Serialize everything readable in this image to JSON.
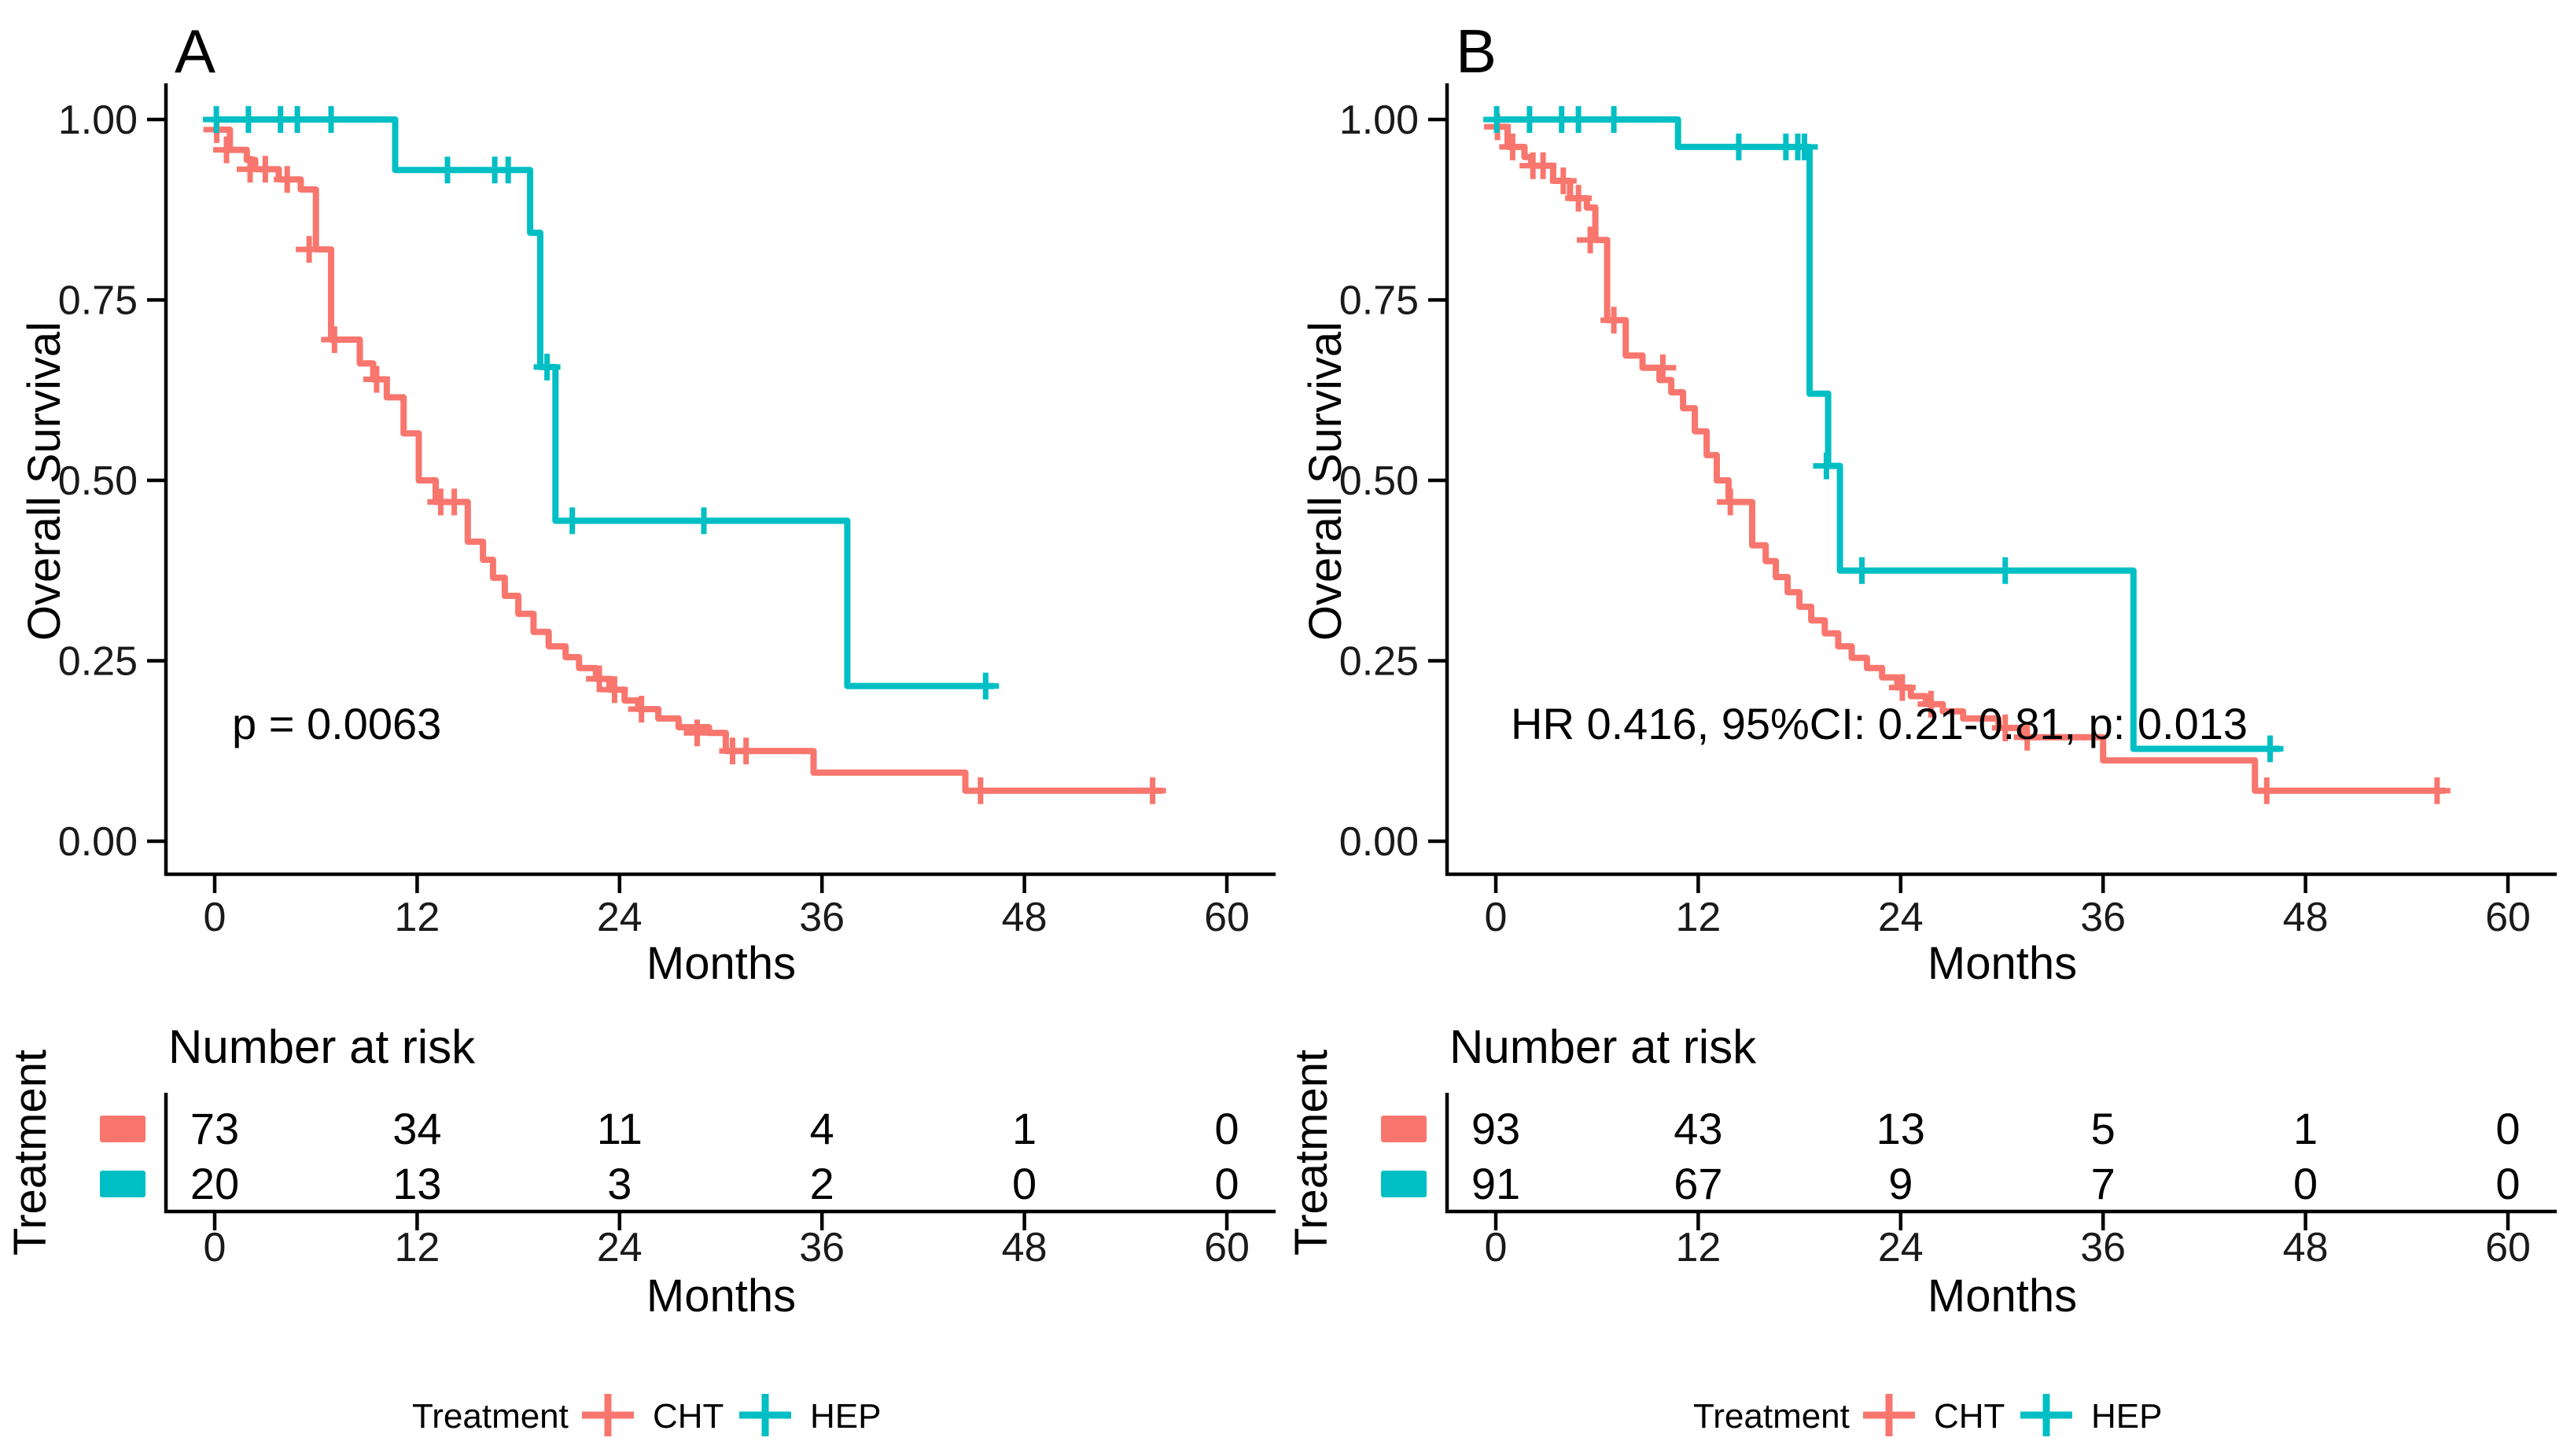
{
  "figure": {
    "background": "#ffffff",
    "group_colors": {
      "CHT": "#F8766D",
      "HEP": "#00BFC4"
    }
  },
  "chart_data": [
    {
      "type": "line",
      "variant": "kaplan_meier_step",
      "title": "A",
      "xlabel": "Months",
      "ylabel": "Overall Survival",
      "xlim": [
        0,
        60
      ],
      "ylim": [
        0,
        1
      ],
      "xticks": [
        0,
        12,
        24,
        36,
        48,
        60
      ],
      "yticks": [
        [
          "1.00",
          1.0
        ],
        [
          "0.75",
          0.75
        ],
        [
          "0.50",
          0.5
        ],
        [
          "0.25",
          0.25
        ],
        [
          "0.00",
          0.0
        ]
      ],
      "annotation": "p = 0.0063",
      "legend": {
        "title": "Treatment",
        "position": "bottom"
      },
      "series": [
        {
          "name": "CHT",
          "color": "#F8766D",
          "steps": [
            [
              0,
              0.986
            ],
            [
              0.9,
              0.958
            ],
            [
              1.9,
              0.944
            ],
            [
              2.4,
              0.931
            ],
            [
              3.8,
              0.917
            ],
            [
              5.1,
              0.903
            ],
            [
              6.0,
              0.82
            ],
            [
              6.9,
              0.695
            ],
            [
              8.6,
              0.662
            ],
            [
              9.4,
              0.64
            ],
            [
              10.2,
              0.615
            ],
            [
              11.2,
              0.565
            ],
            [
              12.1,
              0.5
            ],
            [
              13.1,
              0.47
            ],
            [
              15.0,
              0.415
            ],
            [
              15.9,
              0.39
            ],
            [
              16.5,
              0.365
            ],
            [
              17.2,
              0.34
            ],
            [
              18.0,
              0.315
            ],
            [
              18.9,
              0.29
            ],
            [
              19.8,
              0.27
            ],
            [
              20.8,
              0.255
            ],
            [
              21.6,
              0.24
            ],
            [
              22.6,
              0.225
            ],
            [
              23.4,
              0.21
            ],
            [
              24.3,
              0.195
            ],
            [
              25.1,
              0.183
            ],
            [
              26.3,
              0.17
            ],
            [
              27.5,
              0.158
            ],
            [
              29.3,
              0.15
            ],
            [
              30.3,
              0.125
            ],
            [
              35.5,
              0.095
            ],
            [
              44.5,
              0.07
            ]
          ],
          "end_time": 56.2,
          "censors": [
            [
              0.12,
              0.986
            ],
            [
              0.7,
              0.958
            ],
            [
              2.1,
              0.931
            ],
            [
              3.0,
              0.931
            ],
            [
              4.3,
              0.917
            ],
            [
              5.6,
              0.82
            ],
            [
              7.1,
              0.695
            ],
            [
              9.6,
              0.64
            ],
            [
              13.4,
              0.47
            ],
            [
              14.2,
              0.47
            ],
            [
              22.8,
              0.225
            ],
            [
              23.7,
              0.21
            ],
            [
              25.3,
              0.183
            ],
            [
              28.6,
              0.15
            ],
            [
              30.7,
              0.125
            ],
            [
              31.5,
              0.125
            ],
            [
              45.4,
              0.07
            ],
            [
              55.6,
              0.07
            ]
          ]
        },
        {
          "name": "HEP",
          "color": "#00BFC4",
          "steps": [
            [
              0,
              1.0
            ],
            [
              10.7,
              0.93
            ],
            [
              18.7,
              0.843
            ],
            [
              19.3,
              0.657
            ],
            [
              20.2,
              0.444
            ],
            [
              37.5,
              0.215
            ]
          ],
          "end_time": 46.2,
          "censors": [
            [
              0.1,
              1.0
            ],
            [
              2.0,
              1.0
            ],
            [
              3.9,
              1.0
            ],
            [
              4.9,
              1.0
            ],
            [
              6.9,
              1.0
            ],
            [
              13.8,
              0.93
            ],
            [
              16.6,
              0.93
            ],
            [
              17.4,
              0.93
            ],
            [
              19.7,
              0.657
            ],
            [
              21.2,
              0.444
            ],
            [
              29.0,
              0.444
            ],
            [
              45.7,
              0.215
            ]
          ]
        }
      ],
      "risk_table": {
        "title": "Number at risk",
        "row_label": "Treatment",
        "times": [
          0,
          12,
          24,
          36,
          48,
          60
        ],
        "rows": [
          {
            "name": "CHT",
            "color": "#F8766D",
            "counts": [
              73,
              34,
              11,
              4,
              1,
              0
            ]
          },
          {
            "name": "HEP",
            "color": "#00BFC4",
            "counts": [
              20,
              13,
              3,
              2,
              0,
              0
            ]
          }
        ]
      }
    },
    {
      "type": "line",
      "variant": "kaplan_meier_step",
      "title": "B",
      "xlabel": "Months",
      "ylabel": "Overall Survival",
      "xlim": [
        0,
        60
      ],
      "ylim": [
        0,
        1
      ],
      "xticks": [
        0,
        12,
        24,
        36,
        48,
        60
      ],
      "yticks": [
        [
          "1.00",
          1.0
        ],
        [
          "0.75",
          0.75
        ],
        [
          "0.50",
          0.5
        ],
        [
          "0.25",
          0.25
        ],
        [
          "0.00",
          0.0
        ]
      ],
      "annotation": "HR 0.416, 95%CI: 0.21-0.81, p: 0.013",
      "legend": {
        "title": "Treatment",
        "position": "bottom"
      },
      "series": [
        {
          "name": "CHT",
          "color": "#F8766D",
          "steps": [
            [
              0,
              0.99
            ],
            [
              0.7,
              0.962
            ],
            [
              1.7,
              0.948
            ],
            [
              2.1,
              0.936
            ],
            [
              3.4,
              0.915
            ],
            [
              4.4,
              0.891
            ],
            [
              5.4,
              0.878
            ],
            [
              5.9,
              0.833
            ],
            [
              6.6,
              0.722
            ],
            [
              7.7,
              0.673
            ],
            [
              8.7,
              0.656
            ],
            [
              9.7,
              0.639
            ],
            [
              10.4,
              0.622
            ],
            [
              11.1,
              0.6
            ],
            [
              11.8,
              0.568
            ],
            [
              12.5,
              0.535
            ],
            [
              13.1,
              0.5
            ],
            [
              13.8,
              0.47
            ],
            [
              15.2,
              0.41
            ],
            [
              16.0,
              0.388
            ],
            [
              16.6,
              0.366
            ],
            [
              17.3,
              0.345
            ],
            [
              18.0,
              0.325
            ],
            [
              18.7,
              0.306
            ],
            [
              19.5,
              0.288
            ],
            [
              20.3,
              0.27
            ],
            [
              21.1,
              0.254
            ],
            [
              22.0,
              0.24
            ],
            [
              22.9,
              0.227
            ],
            [
              23.8,
              0.213
            ],
            [
              24.6,
              0.201
            ],
            [
              25.5,
              0.19
            ],
            [
              26.5,
              0.18
            ],
            [
              27.7,
              0.17
            ],
            [
              29.8,
              0.157
            ],
            [
              31.2,
              0.144
            ],
            [
              36.0,
              0.112
            ],
            [
              45.0,
              0.07
            ]
          ],
          "end_time": 56.3,
          "censors": [
            [
              0.1,
              0.99
            ],
            [
              1.0,
              0.962
            ],
            [
              2.2,
              0.936
            ],
            [
              2.8,
              0.936
            ],
            [
              4.0,
              0.915
            ],
            [
              4.9,
              0.891
            ],
            [
              5.6,
              0.833
            ],
            [
              7.0,
              0.722
            ],
            [
              9.9,
              0.656
            ],
            [
              13.9,
              0.47
            ],
            [
              24.1,
              0.213
            ],
            [
              25.8,
              0.19
            ],
            [
              30.2,
              0.157
            ],
            [
              31.5,
              0.144
            ],
            [
              45.7,
              0.07
            ],
            [
              55.8,
              0.07
            ]
          ]
        },
        {
          "name": "HEP",
          "color": "#00BFC4",
          "steps": [
            [
              0,
              1.0
            ],
            [
              10.8,
              0.962
            ],
            [
              18.6,
              0.62
            ],
            [
              19.7,
              0.52
            ],
            [
              20.4,
              0.375
            ],
            [
              37.8,
              0.128
            ]
          ],
          "end_time": 46.5,
          "censors": [
            [
              0.05,
              1.0
            ],
            [
              2.0,
              1.0
            ],
            [
              3.9,
              1.0
            ],
            [
              4.9,
              1.0
            ],
            [
              7.0,
              1.0
            ],
            [
              14.4,
              0.962
            ],
            [
              17.2,
              0.962
            ],
            [
              17.9,
              0.962
            ],
            [
              18.3,
              0.962
            ],
            [
              19.6,
              0.52
            ],
            [
              21.7,
              0.375
            ],
            [
              30.2,
              0.375
            ],
            [
              45.9,
              0.128
            ]
          ]
        }
      ],
      "risk_table": {
        "title": "Number at risk",
        "row_label": "Treatment",
        "times": [
          0,
          12,
          24,
          36,
          48,
          60
        ],
        "rows": [
          {
            "name": "CHT",
            "color": "#F8766D",
            "counts": [
              93,
              43,
              13,
              5,
              1,
              0
            ]
          },
          {
            "name": "HEP",
            "color": "#00BFC4",
            "counts": [
              91,
              67,
              9,
              7,
              0,
              0
            ]
          }
        ]
      }
    }
  ]
}
